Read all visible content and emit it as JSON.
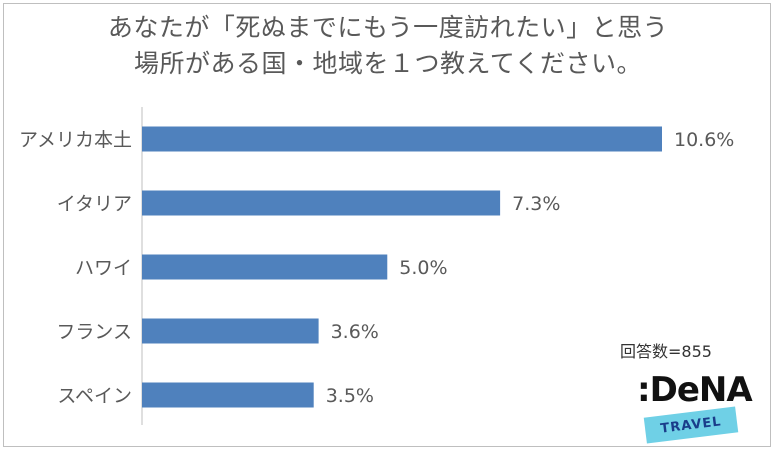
{
  "title_lines": [
    "あなたが「死ぬまでにもう一度訪れたい」と思う",
    "場所がある国・地域を１つ教えてください。"
  ],
  "respondents_label": "回答数=855",
  "logo": {
    "wordmark": ":DeNA",
    "tagline": "TRAVEL"
  },
  "colors": {
    "bar": "#4f81bd",
    "text": "#595959",
    "axis": "#bfbfbf"
  },
  "chart_data": {
    "type": "bar",
    "orientation": "horizontal",
    "title": "あなたが「死ぬまでにもう一度訪れたい」と思う場所がある国・地域を１つ教えてください。",
    "categories": [
      "アメリカ本土",
      "イタリア",
      "ハワイ",
      "フランス",
      "スペイン"
    ],
    "values": [
      10.6,
      7.3,
      5.0,
      3.6,
      3.5
    ],
    "value_labels": [
      "10.6%",
      "7.3%",
      "5.0%",
      "3.6%",
      "3.5%"
    ],
    "unit": "%",
    "xlim": [
      0,
      11
    ],
    "grid": false,
    "legend": "none"
  }
}
